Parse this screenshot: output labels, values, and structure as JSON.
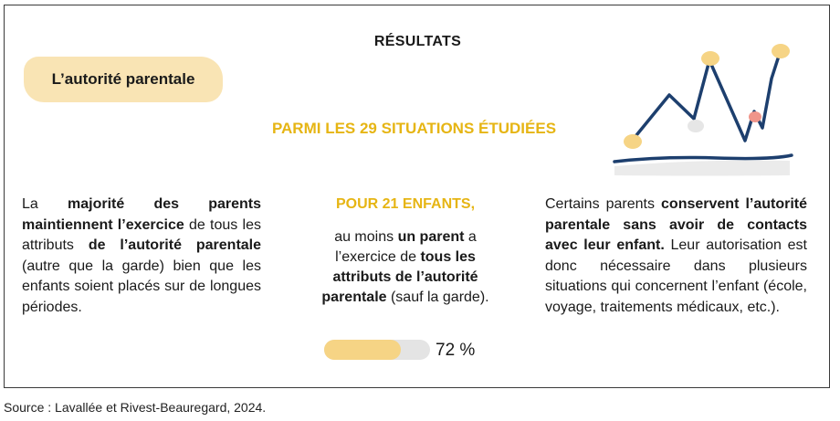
{
  "title": "RÉSULTATS",
  "tag": "L’autorité parentale",
  "subtitle": "PARMI LES 29 SITUATIONS ÉTUDIÉES",
  "left": {
    "t1": "La ",
    "b1": "majorité des parents maintiennent l’exercice",
    "t2": " de tous les attributs ",
    "b2": "de l’autorité parentale",
    "t3": " (autre que la garde) bien que les enfants soient placés sur de longues périodes."
  },
  "middle": {
    "heading": "POUR 21 ENFANTS,",
    "t1": "au moins ",
    "b1": "un parent",
    "t2": " a l’exercice de ",
    "b2": "tous les attributs de l’autorité parentale",
    "t3": " (sauf la garde).",
    "progress_fraction": 0.72,
    "progress_label": "72 %"
  },
  "right": {
    "t1": "Certains parents ",
    "b1": "conservent l’autorité parentale sans avoir de contacts avec leur enfant.",
    "t2": " Leur autorisation est donc nécessaire dans plusieurs situations qui concernent l’enfant (école, voyage, traitements médicaux, etc.)."
  },
  "source": "Source : Lavallée et Rivest-Beauregard, 2024.",
  "colors": {
    "accent_yellow": "#e6b514",
    "tag_bg": "#f9e4b4",
    "progress_fill": "#f6d485",
    "progress_track": "#e4e4e4",
    "line_navy": "#1d3f6e",
    "dot_pink": "#f0958a"
  },
  "icons": [
    "line-chart-illustration"
  ]
}
